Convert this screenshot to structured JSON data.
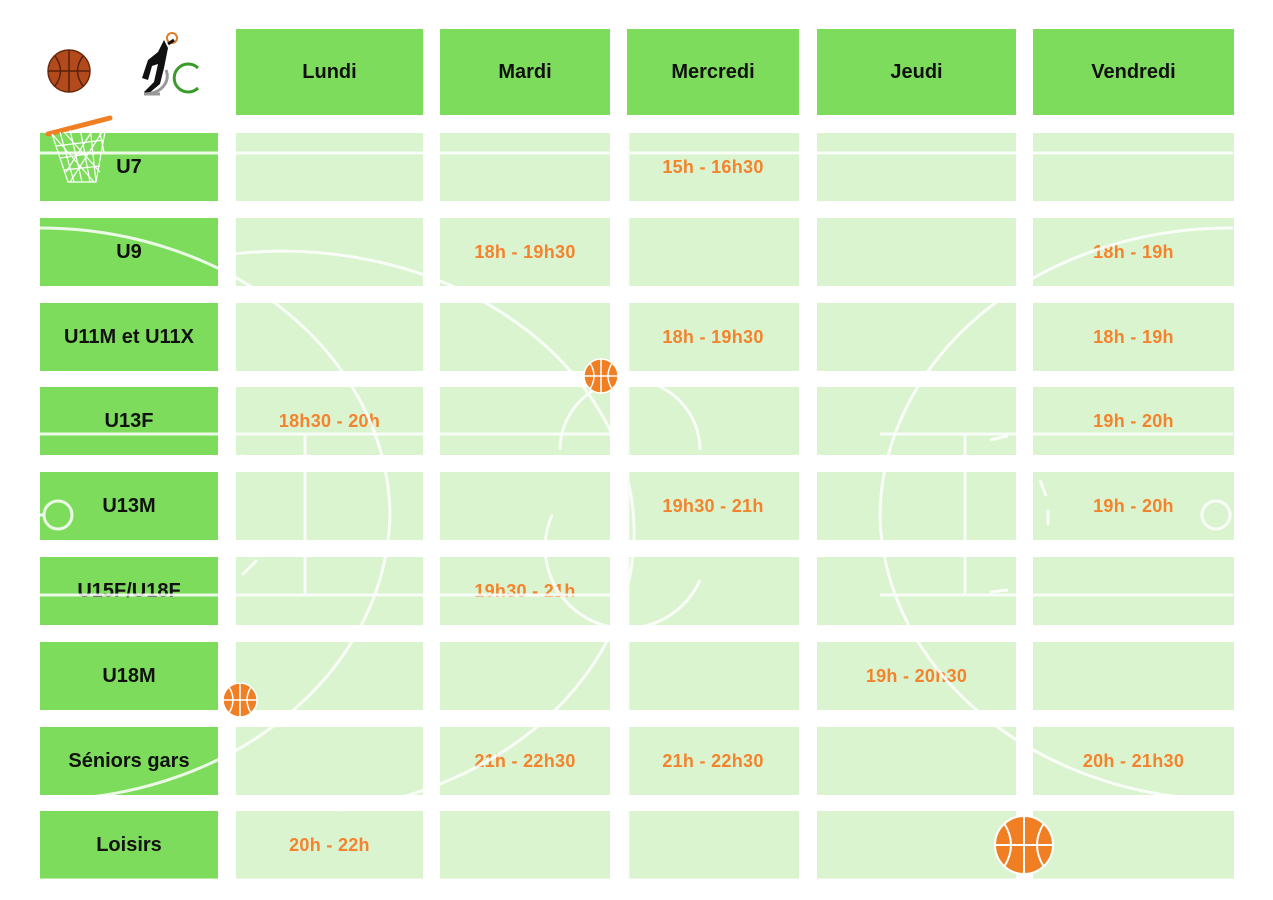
{
  "days": [
    "Lundi",
    "Mardi",
    "Mercredi",
    "Jeudi",
    "Vendredi"
  ],
  "rows": [
    {
      "label": "U7",
      "slots": [
        "",
        "",
        "15h - 16h30",
        "",
        ""
      ]
    },
    {
      "label": "U9",
      "slots": [
        "",
        "18h - 19h30",
        "",
        "",
        "18h - 19h"
      ]
    },
    {
      "label": "U11M et U11X",
      "slots": [
        "",
        "",
        "18h - 19h30",
        "",
        "18h - 19h"
      ]
    },
    {
      "label": "U13F",
      "slots": [
        "18h30 - 20h",
        "",
        "",
        "",
        "19h - 20h"
      ]
    },
    {
      "label": "U13M",
      "slots": [
        "",
        "",
        "19h30 - 21h",
        "",
        "19h - 20h"
      ]
    },
    {
      "label": "U15F/U18F",
      "slots": [
        "",
        "19h30 - 21h",
        "",
        "",
        ""
      ]
    },
    {
      "label": "U18M",
      "slots": [
        "",
        "",
        "",
        "19h - 20h30",
        ""
      ]
    },
    {
      "label": "Séniors gars",
      "slots": [
        "",
        "21h - 22h30",
        "21h - 22h30",
        "",
        "20h - 21h30"
      ]
    },
    {
      "label": "Loisirs",
      "slots": [
        "20h - 22h",
        "",
        "",
        "",
        ""
      ]
    }
  ],
  "colors": {
    "header_bg": "#7ddc5c",
    "slot_bg": "#d9f4cf",
    "time_text": "#f4832e",
    "ball": "#f07f24"
  }
}
